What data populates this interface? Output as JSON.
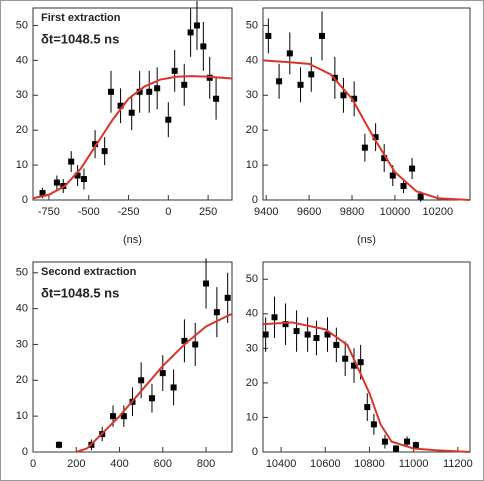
{
  "chart_data": [
    {
      "type": "scatter",
      "annotations": [
        "First extraction",
        "δt=1048.5 ns"
      ],
      "annotation_colors": [
        "#000000",
        "#e0402a"
      ],
      "xlabel": "(ns)",
      "xlim": [
        -850,
        400
      ],
      "xticks": [
        -750,
        -500,
        -250,
        0,
        250
      ],
      "ylim": [
        0,
        55
      ],
      "yticks": [
        0,
        10,
        20,
        30,
        40,
        50
      ],
      "series": [
        {
          "type": "scatter",
          "color": "#000000",
          "x": [
            -790,
            -700,
            -660,
            -610,
            -570,
            -530,
            -460,
            -400,
            -360,
            -300,
            -230,
            -180,
            -120,
            -70,
            0,
            40,
            100,
            140,
            180,
            220,
            260,
            300
          ],
          "values": [
            2,
            5,
            4,
            11,
            7,
            6,
            16,
            14,
            31,
            27,
            25,
            31,
            31,
            32,
            23,
            37,
            33,
            48,
            50,
            44,
            35,
            29
          ],
          "errors": [
            1.5,
            2,
            2,
            3,
            3,
            3,
            4,
            4,
            6,
            5,
            5,
            6,
            6,
            6,
            5,
            6,
            6,
            7,
            7,
            7,
            6,
            6
          ]
        },
        {
          "type": "line",
          "color": "#d9362a",
          "x": [
            -850,
            -750,
            -650,
            -550,
            -450,
            -350,
            -250,
            -150,
            -50,
            50,
            150,
            250,
            350,
            400
          ],
          "values": [
            0.5,
            1.5,
            4,
            9,
            16,
            23,
            29,
            32.5,
            34.5,
            35.3,
            35.5,
            35.3,
            35,
            34.8
          ]
        }
      ]
    },
    {
      "type": "scatter",
      "annotations": [],
      "annotation_colors": [],
      "xlabel": "(ns)",
      "xlim": [
        9385,
        10350
      ],
      "xticks": [
        9400,
        9600,
        9800,
        10000,
        10200
      ],
      "ylim": [
        0,
        55
      ],
      "yticks": [
        0,
        10,
        20,
        30,
        40,
        50
      ],
      "series": [
        {
          "type": "scatter",
          "color": "#000000",
          "x": [
            9410,
            9460,
            9510,
            9560,
            9610,
            9660,
            9720,
            9760,
            9810,
            9860,
            9910,
            9950,
            9990,
            10040,
            10080,
            10120
          ],
          "values": [
            47,
            34,
            42,
            33,
            36,
            47,
            35,
            30,
            29,
            15,
            18,
            12,
            7,
            4,
            9,
            1
          ],
          "errors": [
            5,
            5,
            6,
            5,
            5,
            7,
            6,
            5,
            5,
            4,
            4,
            4,
            3,
            2,
            3,
            1.5
          ]
        },
        {
          "type": "line",
          "color": "#d9362a",
          "x": [
            9385,
            9500,
            9600,
            9700,
            9800,
            9900,
            10000,
            10100,
            10200,
            10350
          ],
          "values": [
            40,
            39.5,
            39,
            36,
            29,
            18,
            8,
            2.5,
            0.5,
            0
          ]
        }
      ]
    },
    {
      "type": "scatter",
      "annotations": [
        "Second extraction",
        "δt=1048.5 ns"
      ],
      "annotation_colors": [
        "#000000",
        "#e0402a"
      ],
      "xlim": [
        0,
        920
      ],
      "xticks": [
        0,
        200,
        400,
        600,
        800
      ],
      "ylim": [
        0,
        53
      ],
      "yticks": [
        0,
        10,
        20,
        30,
        40,
        50
      ],
      "series": [
        {
          "type": "scatter",
          "color": "#000000",
          "x": [
            120,
            270,
            320,
            370,
            420,
            460,
            500,
            550,
            600,
            650,
            700,
            750,
            800,
            850,
            900
          ],
          "values": [
            2,
            2,
            5,
            10,
            10,
            14,
            20,
            15,
            22,
            18,
            31,
            30,
            47,
            39,
            43
          ],
          "errors": [
            1,
            1.5,
            2,
            3,
            3,
            4,
            5,
            4,
            5,
            5,
            6,
            6,
            7,
            7,
            7
          ]
        },
        {
          "type": "line",
          "color": "#d9362a",
          "x": [
            200,
            250,
            300,
            400,
            500,
            600,
            700,
            800,
            900,
            920
          ],
          "values": [
            0,
            1,
            4,
            10,
            17,
            24,
            30,
            35,
            38,
            38.5
          ]
        }
      ]
    },
    {
      "type": "scatter",
      "annotations": [],
      "annotation_colors": [],
      "xlim": [
        10318,
        11255
      ],
      "xticks": [
        10400,
        10600,
        10800,
        11000,
        11200
      ],
      "ylim": [
        0,
        55
      ],
      "yticks": [
        0,
        10,
        20,
        30,
        40,
        50
      ],
      "series": [
        {
          "type": "scatter",
          "color": "#000000",
          "x": [
            10330,
            10370,
            10420,
            10470,
            10520,
            10560,
            10610,
            10650,
            10690,
            10730,
            10760,
            10790,
            10820,
            10870,
            10920,
            10970,
            11010
          ],
          "values": [
            34,
            39,
            37,
            35,
            34,
            33,
            34,
            31,
            27,
            25,
            26,
            13,
            8,
            3,
            1,
            3,
            2
          ],
          "errors": [
            5,
            6,
            6,
            6,
            5,
            5,
            5,
            5,
            5,
            5,
            5,
            4,
            3,
            2,
            1,
            1.5,
            1
          ]
        },
        {
          "type": "line",
          "color": "#d9362a",
          "x": [
            10320,
            10450,
            10600,
            10700,
            10800,
            10850,
            10900,
            11000,
            11100,
            11255
          ],
          "values": [
            37,
            37.5,
            35.5,
            31,
            17,
            8,
            3,
            1,
            0.5,
            0
          ]
        }
      ]
    }
  ]
}
